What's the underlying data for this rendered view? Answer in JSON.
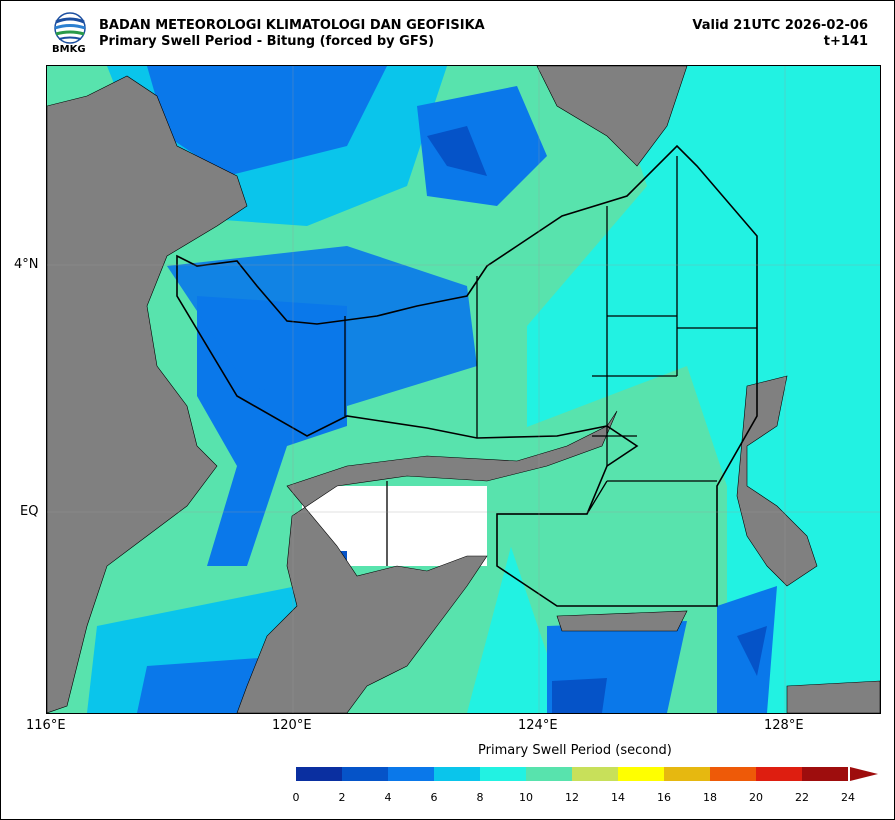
{
  "header": {
    "logo_text": "BMKG",
    "title_line1": "BADAN METEOROLOGI KLIMATOLOGI DAN GEOFISIKA",
    "title_line2": "Primary Swell Period - Bitung (forced by GFS)",
    "valid": "Valid 21UTC 2026-02-06",
    "lead": "t+141"
  },
  "axes": {
    "x_ticks": [
      "116°E",
      "120°E",
      "124°E",
      "128°E"
    ],
    "y_ticks": [
      "4°N",
      "EQ"
    ]
  },
  "colorbar": {
    "title": "Primary Swell Period (second)",
    "labels": [
      "0",
      "2",
      "4",
      "6",
      "8",
      "10",
      "12",
      "14",
      "16",
      "18",
      "20",
      "22",
      "24"
    ],
    "colors": [
      "#0a2fa0",
      "#0553c8",
      "#0a78ea",
      "#0ac5eb",
      "#22f2e2",
      "#58e3ad",
      "#c8e05a",
      "#ffff00",
      "#e6b810",
      "#ee5a08",
      "#de1e10",
      "#9e0d0d"
    ]
  },
  "map_colors": {
    "land": "#808080",
    "nodata": "#ffffff",
    "outline": "#000000"
  }
}
